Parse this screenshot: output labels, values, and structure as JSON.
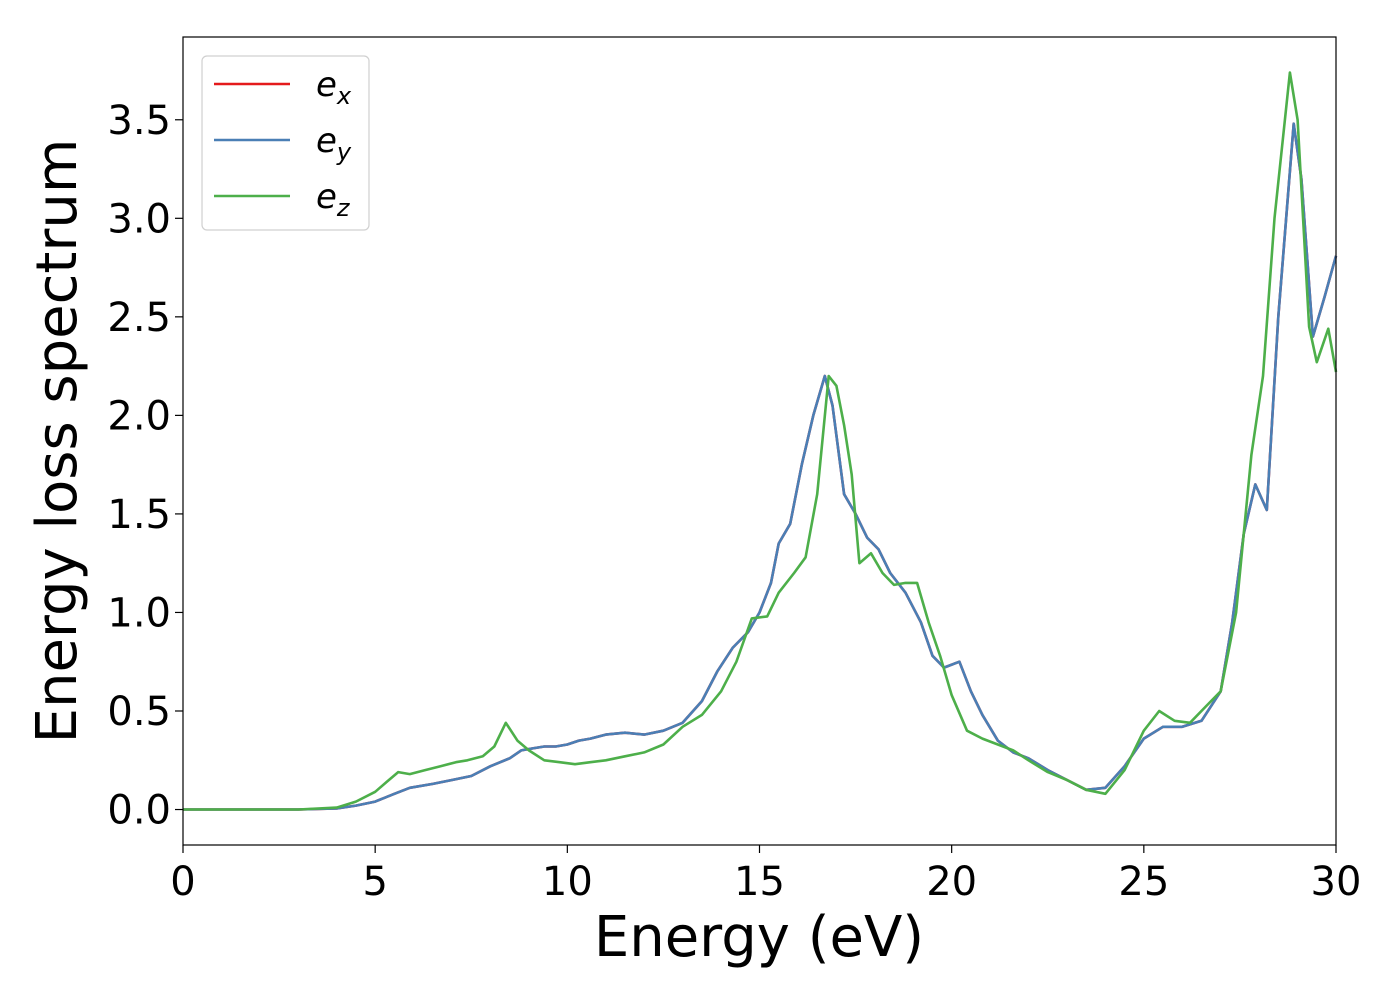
{
  "chart_data": {
    "type": "line",
    "title": "",
    "xlabel": "Energy (eV)",
    "ylabel": "Energy loss spectrum",
    "xlim": [
      0,
      30
    ],
    "ylim": [
      -0.18,
      3.92
    ],
    "xticks": [
      0,
      5,
      10,
      15,
      20,
      25,
      30
    ],
    "xtick_labels": [
      "0",
      "5",
      "10",
      "15",
      "20",
      "25",
      "30"
    ],
    "yticks": [
      0.0,
      0.5,
      1.0,
      1.5,
      2.0,
      2.5,
      3.0,
      3.5
    ],
    "ytick_labels": [
      "0.0",
      "0.5",
      "1.0",
      "1.5",
      "2.0",
      "2.5",
      "3.0",
      "3.5"
    ],
    "grid": false,
    "legend_position": "top-left",
    "series": [
      {
        "name": "e",
        "subscript": "x",
        "color": "#e41a1c",
        "x": [
          0,
          3,
          4,
          4.5,
          5,
          5.5,
          5.9,
          6.5,
          7,
          7.5,
          8,
          8.5,
          8.8,
          9.1,
          9.4,
          9.7,
          10,
          10.3,
          10.6,
          11,
          11.5,
          12,
          12.5,
          13,
          13.5,
          13.9,
          14.3,
          14.7,
          15,
          15.3,
          15.5,
          15.8,
          16.1,
          16.4,
          16.7,
          16.9,
          17.2,
          17.5,
          17.8,
          18.1,
          18.4,
          18.8,
          19.2,
          19.5,
          19.8,
          20.2,
          20.5,
          20.8,
          21.2,
          21.6,
          22,
          22.5,
          23,
          23.5,
          24,
          24.5,
          25,
          25.5,
          26,
          26.5,
          27,
          27.3,
          27.6,
          27.9,
          28.2,
          28.5,
          28.9,
          29.1,
          29.4,
          29.7,
          30
        ],
        "y": [
          0,
          0,
          0.005,
          0.02,
          0.04,
          0.08,
          0.11,
          0.13,
          0.15,
          0.17,
          0.22,
          0.26,
          0.3,
          0.31,
          0.32,
          0.32,
          0.33,
          0.35,
          0.36,
          0.38,
          0.39,
          0.38,
          0.4,
          0.44,
          0.55,
          0.7,
          0.82,
          0.9,
          1.0,
          1.15,
          1.35,
          1.45,
          1.75,
          2.0,
          2.2,
          2.05,
          1.6,
          1.5,
          1.38,
          1.32,
          1.2,
          1.1,
          0.95,
          0.78,
          0.72,
          0.75,
          0.6,
          0.48,
          0.35,
          0.29,
          0.26,
          0.2,
          0.15,
          0.1,
          0.11,
          0.22,
          0.36,
          0.42,
          0.42,
          0.45,
          0.6,
          0.95,
          1.4,
          1.65,
          1.52,
          2.5,
          3.48,
          3.2,
          2.4,
          2.6,
          2.81
        ]
      },
      {
        "name": "e",
        "subscript": "y",
        "color": "#4a7fb5",
        "x": [
          0,
          3,
          4,
          4.5,
          5,
          5.5,
          5.9,
          6.5,
          7,
          7.5,
          8,
          8.5,
          8.8,
          9.1,
          9.4,
          9.7,
          10,
          10.3,
          10.6,
          11,
          11.5,
          12,
          12.5,
          13,
          13.5,
          13.9,
          14.3,
          14.7,
          15,
          15.3,
          15.5,
          15.8,
          16.1,
          16.4,
          16.7,
          16.9,
          17.2,
          17.5,
          17.8,
          18.1,
          18.4,
          18.8,
          19.2,
          19.5,
          19.8,
          20.2,
          20.5,
          20.8,
          21.2,
          21.6,
          22,
          22.5,
          23,
          23.5,
          24,
          24.5,
          25,
          25.5,
          26,
          26.5,
          27,
          27.3,
          27.6,
          27.9,
          28.2,
          28.5,
          28.9,
          29.1,
          29.4,
          29.7,
          30
        ],
        "y": [
          0,
          0,
          0.005,
          0.02,
          0.04,
          0.08,
          0.11,
          0.13,
          0.15,
          0.17,
          0.22,
          0.26,
          0.3,
          0.31,
          0.32,
          0.32,
          0.33,
          0.35,
          0.36,
          0.38,
          0.39,
          0.38,
          0.4,
          0.44,
          0.55,
          0.7,
          0.82,
          0.9,
          1.0,
          1.15,
          1.35,
          1.45,
          1.75,
          2.0,
          2.2,
          2.05,
          1.6,
          1.5,
          1.38,
          1.32,
          1.2,
          1.1,
          0.95,
          0.78,
          0.72,
          0.75,
          0.6,
          0.48,
          0.35,
          0.29,
          0.26,
          0.2,
          0.15,
          0.1,
          0.11,
          0.22,
          0.36,
          0.42,
          0.42,
          0.45,
          0.6,
          0.95,
          1.4,
          1.65,
          1.52,
          2.5,
          3.48,
          3.2,
          2.4,
          2.6,
          2.81
        ]
      },
      {
        "name": "e",
        "subscript": "z",
        "color": "#4daf4a",
        "x": [
          0,
          3,
          4,
          4.5,
          5,
          5.3,
          5.6,
          5.9,
          6.3,
          6.7,
          7.1,
          7.4,
          7.8,
          8.1,
          8.4,
          8.7,
          9,
          9.4,
          9.8,
          10.2,
          10.6,
          11,
          11.5,
          12,
          12.5,
          13,
          13.5,
          14,
          14.4,
          14.8,
          15.2,
          15.5,
          15.9,
          16.2,
          16.5,
          16.8,
          17,
          17.2,
          17.4,
          17.6,
          17.9,
          18.2,
          18.5,
          18.8,
          19.1,
          19.4,
          19.7,
          20,
          20.4,
          20.8,
          21.2,
          21.6,
          22,
          22.5,
          23,
          23.5,
          24,
          24.5,
          25,
          25.4,
          25.8,
          26.2,
          26.6,
          27,
          27.4,
          27.8,
          28.1,
          28.4,
          28.8,
          29,
          29.3,
          29.5,
          29.8,
          30
        ],
        "y": [
          0,
          0,
          0.01,
          0.04,
          0.09,
          0.14,
          0.19,
          0.18,
          0.2,
          0.22,
          0.24,
          0.25,
          0.27,
          0.32,
          0.44,
          0.35,
          0.3,
          0.25,
          0.24,
          0.23,
          0.24,
          0.25,
          0.27,
          0.29,
          0.33,
          0.42,
          0.48,
          0.6,
          0.75,
          0.97,
          0.98,
          1.1,
          1.2,
          1.28,
          1.6,
          2.2,
          2.15,
          1.95,
          1.7,
          1.25,
          1.3,
          1.2,
          1.14,
          1.15,
          1.15,
          0.95,
          0.78,
          0.58,
          0.4,
          0.36,
          0.33,
          0.3,
          0.25,
          0.19,
          0.15,
          0.1,
          0.08,
          0.2,
          0.4,
          0.5,
          0.45,
          0.44,
          0.52,
          0.6,
          1.0,
          1.8,
          2.2,
          3.0,
          3.74,
          3.5,
          2.45,
          2.27,
          2.44,
          2.22
        ]
      }
    ]
  }
}
